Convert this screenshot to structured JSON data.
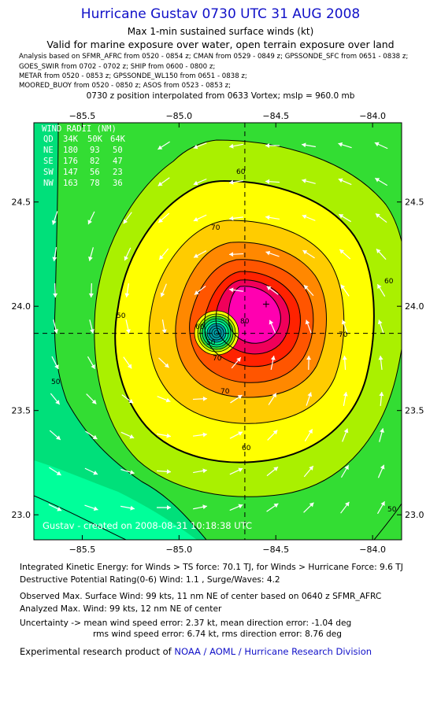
{
  "header": {
    "title": "Hurricane Gustav 0730 UTC 31 AUG 2008",
    "subtitle": "Max 1-min sustained surface winds (kt)",
    "validity": "Valid for marine exposure over water, open terrain exposure over land",
    "analysis_lines": [
      "Analysis based on   SFMR_AFRC from 0520 - 0854 z;  CMAN from 0529 - 0849 z;  GPSSONDE_SFC from 0651 - 0838 z;",
      "GOES_SWIR from 0702 - 0702 z;  SHIP from 0600 - 0800 z;",
      "METAR from 0520 - 0853 z;  GPSSONDE_WL150 from 0651 - 0838 z;",
      "MOORED_BUOY from 0520 - 0850 z;  ASOS from 0523 - 0853 z;"
    ],
    "position_line": "0730 z position interpolated from 0633 Vortex; mslp = 960.0 mb"
  },
  "map": {
    "lon_ticks": [
      {
        "value": -85.5,
        "label": "−85.5"
      },
      {
        "value": -85.0,
        "label": "−85.0"
      },
      {
        "value": -84.5,
        "label": "−84.5"
      },
      {
        "value": -84.0,
        "label": "−84.0"
      }
    ],
    "lat_ticks": [
      {
        "value": 24.5,
        "label": "24.5"
      },
      {
        "value": 24.0,
        "label": "24.0"
      },
      {
        "value": 23.5,
        "label": "23.5"
      },
      {
        "value": 23.0,
        "label": "23.0"
      }
    ],
    "lon_range": [
      -85.75,
      -83.85
    ],
    "lat_range": [
      22.88,
      24.88
    ],
    "center": {
      "lon": -84.66,
      "lat": 23.87
    },
    "max_wind_marker": {
      "lon": -84.55,
      "lat": 24.01
    },
    "wind_radii": {
      "heading": "WIND RADII (NM)",
      "rows": [
        {
          "quad": "QD",
          "r34": "34K",
          "r50": "50K",
          "r64": "64K"
        },
        {
          "quad": "NE",
          "r34": "180",
          "r50": "93",
          "r64": "50"
        },
        {
          "quad": "SE",
          "r34": "176",
          "r50": "82",
          "r64": "47"
        },
        {
          "quad": "SW",
          "r34": "147",
          "r50": "56",
          "r64": "23"
        },
        {
          "quad": "NW",
          "r34": "163",
          "r50": "78",
          "r64": "36"
        }
      ]
    },
    "contour_labels": [
      "60",
      "70",
      "60",
      "50",
      "50",
      "70",
      "60",
      "80",
      "70",
      "50",
      "60",
      "70",
      "50"
    ],
    "credit": "Gustav - created on 2008-08-31 10:18:38 UTC",
    "colors": {
      "c35": "#00ff9a",
      "c45": "#00e07a",
      "c50": "#33dd33",
      "c55": "#aaf000",
      "c60": "#ffff00",
      "c65": "#ffcc00",
      "c70": "#ff8800",
      "c75": "#ff5500",
      "c80": "#ff2200",
      "c85": "#f0005a",
      "c90": "#ff00b0",
      "eye": "#00a0a8"
    }
  },
  "footer": {
    "ike_line": "Integrated Kinetic Energy:  for Winds > TS force: 70.1 TJ,  for Winds > Hurricane Force: 9.6 TJ",
    "dpr_line": "Destructive Potential Rating(0-6)   Wind: 1.1 , Surge/Waves: 4.2",
    "observed_line": "Observed Max. Surface Wind: 99 kts, 11 nm NE of center based on 0640 z SFMR_AFRC",
    "analyzed_line": "Analyzed Max. Wind: 99 kts, 12 nm NE of center",
    "uncertainty_line1": "Uncertainty -> mean wind speed error: 2.37 kt,   mean direction error:  -1.04 deg",
    "uncertainty_line2": "rms wind speed error: 6.74 kt,   rms direction error: 8.76 deg",
    "product_prefix": "Experimental research product of",
    "product_org": "NOAA / AOML / Hurricane Research Division"
  }
}
